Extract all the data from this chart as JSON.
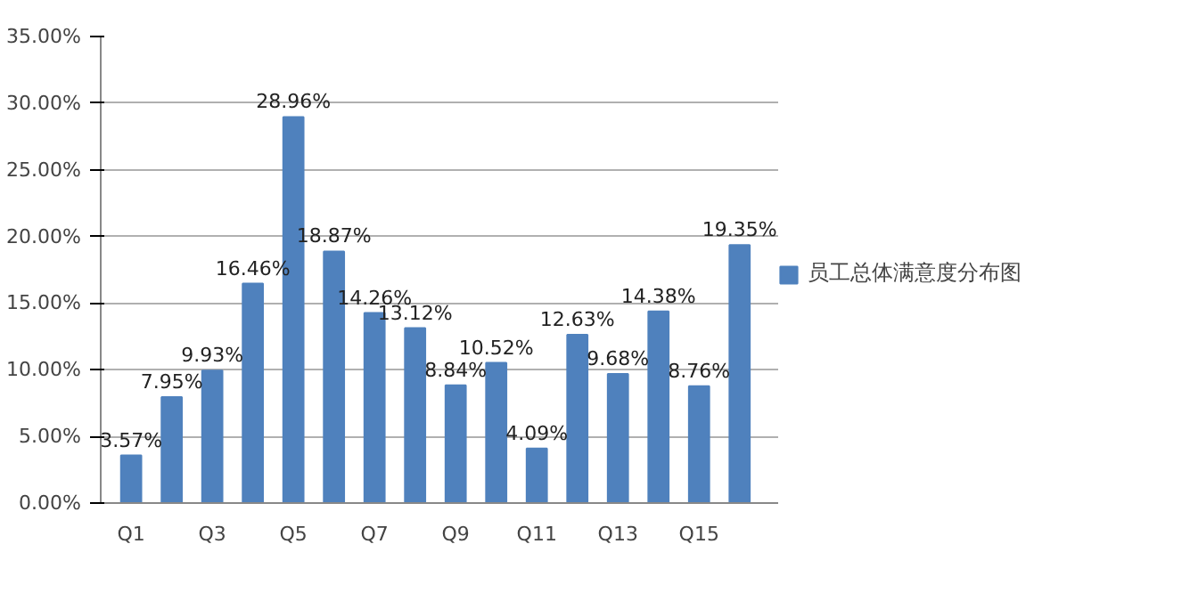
{
  "chart_data": {
    "type": "bar",
    "categories": [
      "Q1",
      null,
      "Q3",
      null,
      "Q5",
      null,
      "Q7",
      null,
      "Q9",
      null,
      "Q11",
      null,
      "Q13",
      null,
      "Q15",
      null
    ],
    "series": [
      {
        "name": "员工总体满意度分布图",
        "color": "#4f81bd",
        "values": [
          3.57,
          7.95,
          9.93,
          16.46,
          28.96,
          18.87,
          14.26,
          13.12,
          8.84,
          10.52,
          4.09,
          12.63,
          9.68,
          14.38,
          8.76,
          19.35
        ],
        "value_labels": [
          "3.57%",
          "7.95%",
          "9.93%",
          "16.46%",
          "28.96%",
          "18.87%",
          "14.26%",
          "13.12%",
          "8.84%",
          "10.52%",
          "4.09%",
          "12.63%",
          "9.68%",
          "14.38%",
          "8.76%",
          "19.35%"
        ]
      }
    ],
    "ylim": [
      0,
      35
    ],
    "yticks": [
      {
        "value": 0,
        "label": "0.00%"
      },
      {
        "value": 5,
        "label": "5.00%"
      },
      {
        "value": 10,
        "label": "10.00%"
      },
      {
        "value": 15,
        "label": "15.00%"
      },
      {
        "value": 20,
        "label": "20.00%"
      },
      {
        "value": 25,
        "label": "25.00%"
      },
      {
        "value": 30,
        "label": "30.00%"
      },
      {
        "value": 35,
        "label": "35.00%"
      }
    ],
    "grid": "y",
    "legend": "right"
  }
}
